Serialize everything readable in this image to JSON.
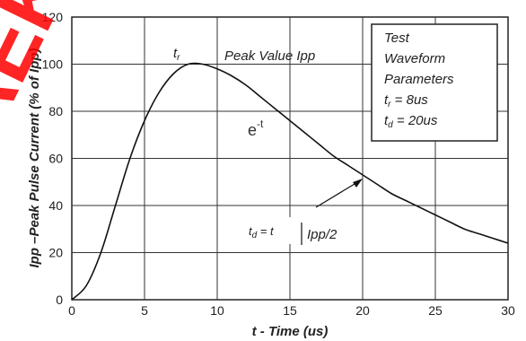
{
  "chart_data": {
    "type": "line",
    "title": "",
    "xlabel": "t - Time (us)",
    "ylabel": "Ipp –Peak Pulse Current (% of Ipp)",
    "xlim": [
      0,
      30
    ],
    "ylim": [
      0,
      120
    ],
    "x_ticks": [
      0,
      5,
      10,
      15,
      20,
      25,
      30
    ],
    "y_ticks": [
      0,
      20,
      40,
      60,
      80,
      100,
      120
    ],
    "grid": true,
    "series": [
      {
        "x": [
          0,
          1,
          2,
          3,
          4,
          5,
          6,
          7,
          8,
          9,
          10,
          11,
          12,
          13,
          14,
          15,
          16,
          17,
          18,
          19,
          20,
          21,
          22,
          23,
          24,
          25,
          26,
          27,
          28,
          29,
          30
        ],
        "values": [
          0,
          6,
          20,
          40,
          60,
          76,
          88,
          96,
          100,
          100,
          98,
          95,
          91,
          86,
          81,
          76,
          71,
          66,
          61,
          57,
          53,
          49,
          45,
          42,
          39,
          36,
          33,
          30,
          28,
          26,
          24
        ],
        "color": "#111111"
      }
    ],
    "annotations": {
      "tr_label": "t",
      "tr_sub": "r",
      "peak_label": "Peak Value Ipp",
      "decay_base": "e",
      "decay_exp": "-t",
      "td_prefix": "t",
      "td_sub": "d",
      "td_eq": " = t",
      "td_tail": "Ipp/2"
    },
    "legend": {
      "position": "top-right",
      "lines": [
        "Test",
        "Waveform",
        "Parameters"
      ],
      "tr_base": "t",
      "tr_sub": "r",
      "tr_value": " = 8us",
      "td_base": "t",
      "td_sub": "d",
      "td_value": " = 20us"
    }
  },
  "watermark": {
    "text": "AEK",
    "color": "#ff0000"
  }
}
